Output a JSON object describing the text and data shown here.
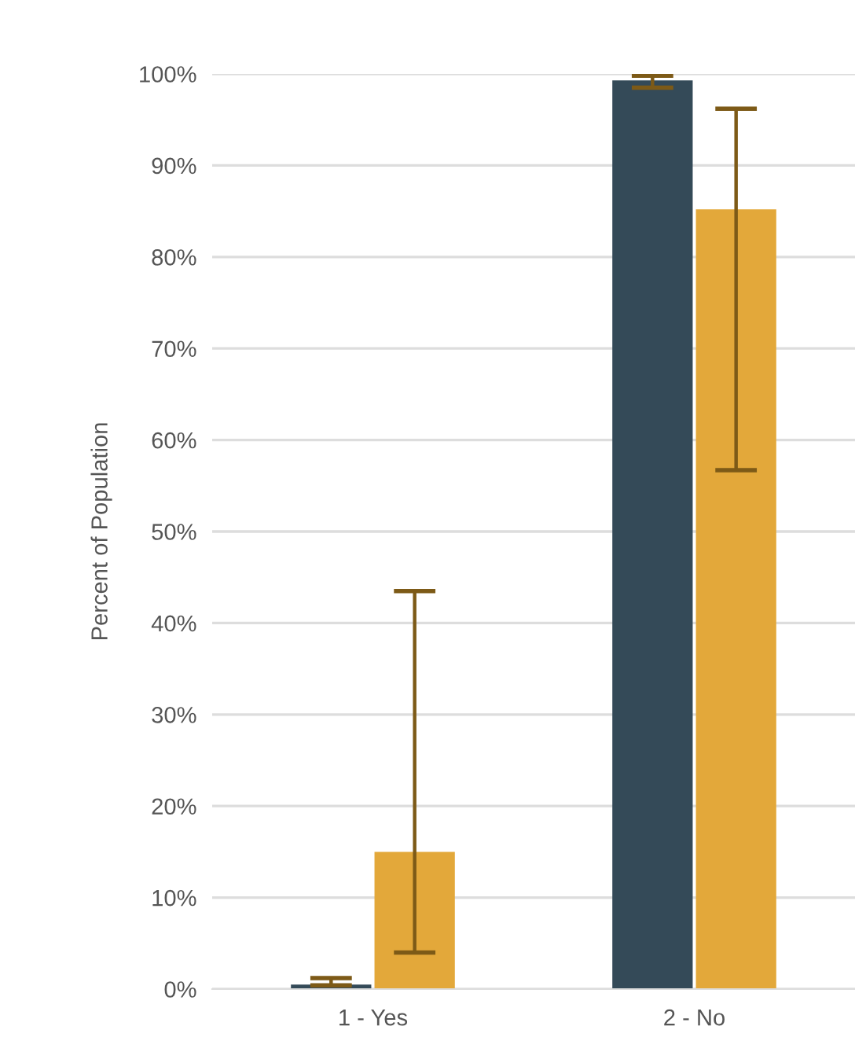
{
  "chart_data": {
    "type": "bar",
    "ylabel": "Percent of Population",
    "categories": [
      "1 - Yes",
      "2 - No"
    ],
    "series": [
      {
        "color": "#344a58",
        "values": [
          0.5,
          99.3
        ],
        "errors": [
          [
            0.4,
            1.2
          ],
          [
            98.5,
            99.8
          ]
        ]
      },
      {
        "color": "#e3a83a",
        "values": [
          15.0,
          85.2
        ],
        "errors": [
          [
            4.0,
            43.5
          ],
          [
            56.7,
            96.2
          ]
        ]
      }
    ],
    "ylim": [
      0,
      100
    ],
    "yticks": [
      {
        "value": 0,
        "label": "0%"
      },
      {
        "value": 10,
        "label": "10%"
      },
      {
        "value": 20,
        "label": "20%"
      },
      {
        "value": 30,
        "label": "30%"
      },
      {
        "value": 40,
        "label": "40%"
      },
      {
        "value": 50,
        "label": "50%"
      },
      {
        "value": 60,
        "label": "60%"
      },
      {
        "value": 70,
        "label": "70%"
      },
      {
        "value": 80,
        "label": "80%"
      },
      {
        "value": 90,
        "label": "90%"
      },
      {
        "value": 100,
        "label": "100%"
      }
    ],
    "grid": "y"
  }
}
